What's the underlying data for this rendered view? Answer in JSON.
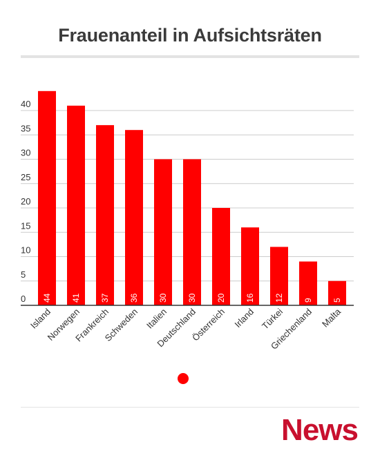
{
  "title": "Frauenanteil in Aufsichtsräten",
  "brand": "News",
  "colors": {
    "bar": "#ff0000",
    "legend": "#ff0000",
    "logo": "#c8102e",
    "grid": "#cccccc"
  },
  "chart_data": {
    "type": "bar",
    "title": "Frauenanteil in Aufsichtsräten",
    "xlabel": "",
    "ylabel": "",
    "categories": [
      "Island",
      "Norwegen",
      "Frankreich",
      "Schweden",
      "Italien",
      "Deutschland",
      "Österreich",
      "Irland",
      "Türkei",
      "Griechenland",
      "Malta"
    ],
    "values": [
      44,
      41,
      37,
      36,
      30,
      30,
      20,
      16,
      12,
      9,
      5
    ],
    "ylim": [
      0,
      45
    ],
    "yticks": [
      0,
      5,
      10,
      15,
      20,
      25,
      30,
      35,
      40
    ],
    "grid": true,
    "legend": "bottom-center",
    "data_labels": true
  }
}
